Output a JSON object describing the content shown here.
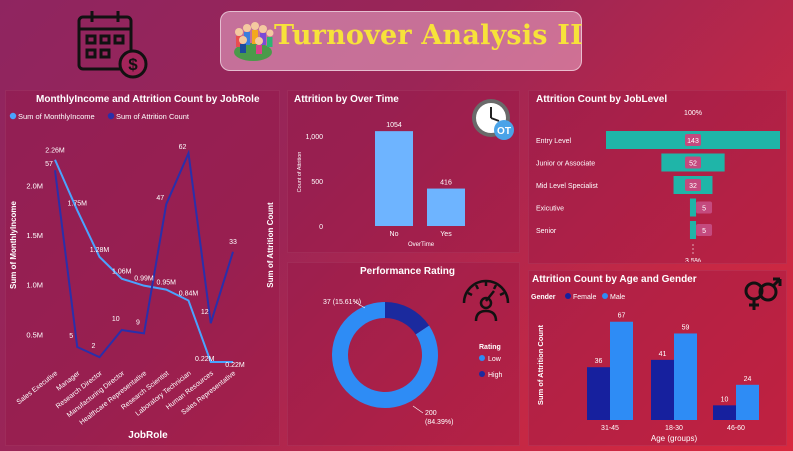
{
  "header": {
    "title": "Turnover Analysis II"
  },
  "colors": {
    "background": "#a3245a",
    "accent_yellow": "#f7e23a",
    "line_income": "#4aa3ff",
    "line_attrition": "#2a2faa",
    "bar_blue": "#6eb4ff",
    "teal": "#1fb5a8",
    "donut_low": "#2e8cf5",
    "donut_high": "#1b2a9e",
    "female": "#16209e",
    "male": "#2e8cf5"
  },
  "icons": {
    "calendar": "calendar-dollar-icon",
    "people": "people-group-icon",
    "clock": "overtime-clock-icon",
    "gauge": "performance-gauge-icon",
    "gender": "gender-symbols-icon"
  },
  "chart_data": [
    {
      "type": "line",
      "title": "MonthlyIncome and Attrition Count by JobRole",
      "xlabel": "JobRole",
      "ylabel_left": "Sum of MonthlyIncome",
      "ylabel_right": "Sum of Attrition Count",
      "legend_position": "top-left",
      "categories": [
        "Sales Executive",
        "Manager",
        "Research Director",
        "Manufacturing Director",
        "Healthcare Representative",
        "Research Scientist",
        "Laboratory Technician",
        "Human Resources",
        "Sales Representative"
      ],
      "series": [
        {
          "name": "Sum of MonthlyIncome",
          "axis": "left",
          "values": [
            2260000,
            1750000,
            1280000,
            1060000,
            990000,
            950000,
            840000,
            220000,
            220000
          ],
          "labels": [
            "2.26M",
            "1.75M",
            "1.28M",
            "1.06M",
            "0.99M",
            "0.95M",
            "0.84M",
            "0.22M",
            "0.22M"
          ]
        },
        {
          "name": "Sum of Attrition Count",
          "axis": "right",
          "values": [
            57,
            5,
            2,
            10,
            9,
            47,
            62,
            12,
            33
          ],
          "labels": [
            "57",
            "5",
            "2",
            "10",
            "9",
            "47",
            "62",
            "12",
            "33"
          ]
        }
      ],
      "y_left_ticks": [
        "0.5M",
        "1.0M",
        "1.5M",
        "2.0M"
      ],
      "y_left_tick_values": [
        500000,
        1000000,
        1500000,
        2000000
      ],
      "ylim_left": [
        200000,
        2600000
      ],
      "ylim_right": [
        0,
        70
      ]
    },
    {
      "type": "bar",
      "title": "Attrition by Over Time",
      "xlabel": "OverTime",
      "ylabel": "Count of Attrition",
      "categories": [
        "No",
        "Yes"
      ],
      "values": [
        1054,
        416
      ],
      "labels": [
        "1054",
        "416"
      ],
      "y_ticks": [
        "0",
        "500",
        "1,000"
      ],
      "y_tick_values": [
        0,
        500,
        1000
      ],
      "ylim": [
        0,
        1200
      ]
    },
    {
      "type": "pie",
      "subtype": "donut",
      "title": "Performance Rating",
      "legend_title": "Rating",
      "legend_position": "right",
      "slices": [
        {
          "name": "Low",
          "value": 200,
          "label": "200",
          "pct": "(84.39%)"
        },
        {
          "name": "High",
          "value": 37,
          "label": "37 (15.61%)"
        }
      ]
    },
    {
      "type": "bar",
      "subtype": "funnel",
      "title": "Attrition Count by JobLevel",
      "top_label": "100%",
      "bottom_label": "3.5%",
      "categories": [
        "Entry Level",
        "Junior or Associate",
        "Mid Level Specialist",
        "Exicutive",
        "Senior"
      ],
      "values": [
        143,
        52,
        32,
        5,
        5
      ],
      "labels": [
        "143",
        "52",
        "32",
        "5",
        "5"
      ]
    },
    {
      "type": "bar",
      "title": "Attrition Count by Age and Gender",
      "xlabel": "Age (groups)",
      "ylabel": "Sum of Attrition Count",
      "legend_title": "Gender",
      "legend_position": "top-left",
      "categories": [
        "31-45",
        "18-30",
        "46-60"
      ],
      "series": [
        {
          "name": "Female",
          "values": [
            36,
            41,
            10
          ],
          "labels": [
            "36",
            "41",
            "10"
          ]
        },
        {
          "name": "Male",
          "values": [
            67,
            59,
            24
          ],
          "labels": [
            "67",
            "59",
            "24"
          ]
        }
      ],
      "ylim": [
        0,
        75
      ]
    }
  ]
}
